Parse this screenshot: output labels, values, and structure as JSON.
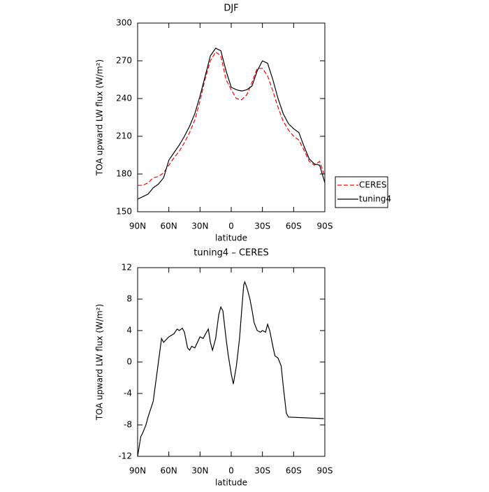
{
  "chart_data": [
    {
      "type": "line",
      "title": "DJF",
      "x_label": "latitude",
      "y_label": "TOA upward LW flux (W/m²)",
      "x": [
        90,
        85,
        80,
        75,
        70,
        65,
        60,
        55,
        50,
        45,
        40,
        35,
        30,
        25,
        20,
        15,
        10,
        5,
        0,
        -5,
        -10,
        -15,
        -20,
        -25,
        -30,
        -35,
        -40,
        -45,
        -50,
        -55,
        -60,
        -65,
        -70,
        -75,
        -80,
        -85,
        -90
      ],
      "series": [
        {
          "name": "CERES",
          "color": "#ff0000",
          "dash": true,
          "values": [
            171,
            171,
            173,
            177,
            178,
            181,
            187,
            193,
            198,
            205,
            213,
            223,
            238,
            256,
            270,
            277,
            274,
            255,
            247,
            240,
            239,
            243,
            253,
            264,
            264,
            258,
            246,
            233,
            222,
            215,
            210,
            207,
            199,
            190,
            187,
            190,
            178
          ]
        },
        {
          "name": "tuning4",
          "color": "#000000",
          "dash": false,
          "values": [
            160,
            162,
            164,
            169,
            172,
            177,
            191,
            197,
            203,
            210,
            218,
            228,
            242,
            258,
            274,
            280,
            278,
            262,
            249,
            247,
            246,
            247,
            250,
            262,
            270,
            268,
            255,
            240,
            228,
            220,
            216,
            213,
            202,
            192,
            188,
            187,
            173
          ]
        }
      ],
      "xlim": [
        90,
        -90
      ],
      "xticks": [
        {
          "value": 90,
          "label": "90N"
        },
        {
          "value": 60,
          "label": "60N"
        },
        {
          "value": 30,
          "label": "30N"
        },
        0,
        {
          "value": -30,
          "label": "30S"
        },
        {
          "value": -60,
          "label": "60S"
        },
        {
          "value": -90,
          "label": "90S"
        }
      ],
      "ylim": [
        150,
        300
      ],
      "yticks": [
        150,
        180,
        210,
        240,
        270,
        300
      ],
      "legend": "right"
    },
    {
      "type": "line",
      "title": "tuning4 – CERES",
      "x_label": "latitude",
      "y_label": "TOA upward LW flux (W/m²)",
      "x": [
        90,
        87,
        85,
        82,
        80,
        75,
        70,
        67,
        65,
        60,
        55,
        52,
        50,
        47,
        45,
        42,
        40,
        38,
        35,
        30,
        27,
        25,
        22,
        20,
        18,
        15,
        12,
        10,
        8,
        5,
        3,
        0,
        -2,
        -5,
        -8,
        -10,
        -12,
        -13,
        -15,
        -18,
        -20,
        -22,
        -25,
        -28,
        -30,
        -33,
        -35,
        -37,
        -40,
        -42,
        -45,
        -48,
        -50,
        -53,
        -55,
        -89
      ],
      "series": [
        {
          "color": "#000000",
          "dash": false,
          "values": [
            -12,
            -9.5,
            -9,
            -8,
            -7,
            -5,
            0,
            3,
            2.5,
            3.2,
            3.6,
            4.2,
            4,
            4.3,
            3.8,
            1.8,
            1.5,
            2,
            1.8,
            3.2,
            3,
            3.5,
            4.2,
            2.5,
            1.5,
            3,
            6,
            7,
            6.5,
            3,
            1,
            -1.5,
            -2.8,
            -0.5,
            3,
            6.5,
            9.8,
            10.2,
            9.5,
            8,
            6.6,
            5,
            4,
            3.8,
            4,
            3.8,
            4.8,
            4,
            2,
            0.8,
            0.5,
            -0.5,
            -3,
            -6.5,
            -7,
            -7.2
          ]
        }
      ],
      "xlim": [
        90,
        -90
      ],
      "xticks": [
        {
          "value": 90,
          "label": "90N"
        },
        {
          "value": 60,
          "label": "60N"
        },
        {
          "value": 30,
          "label": "30N"
        },
        0,
        {
          "value": -30,
          "label": "30S"
        },
        {
          "value": -60,
          "label": "60S"
        },
        {
          "value": -90,
          "label": "90S"
        }
      ],
      "ylim": [
        -12,
        12
      ],
      "yticks": [
        -12,
        -8,
        -4,
        0,
        4,
        8,
        12
      ]
    }
  ]
}
